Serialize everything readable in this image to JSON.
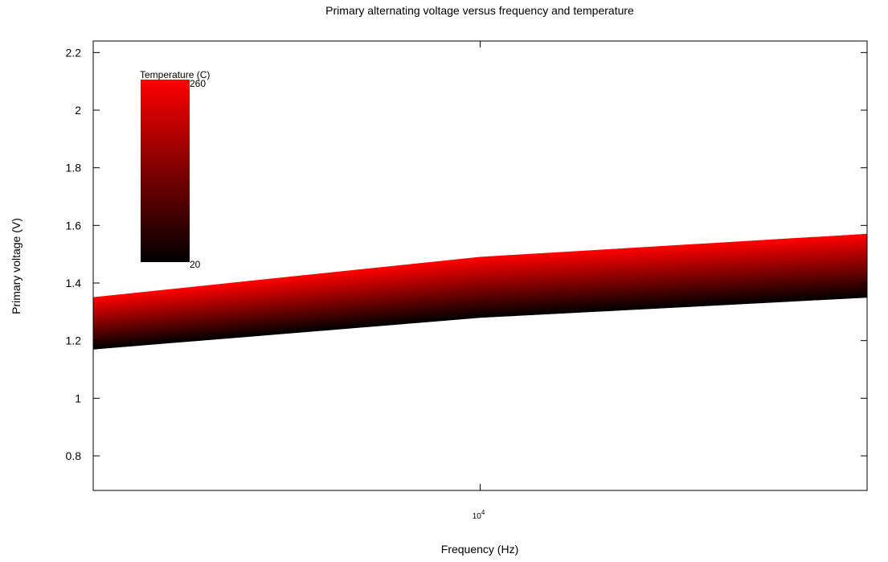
{
  "chart_data": {
    "type": "area",
    "title": "Primary alternating voltage versus frequency and temperature",
    "xlabel": "Frequency (Hz)",
    "ylabel": "Primary voltage (V)",
    "x_scale": "log",
    "xlim": [
      2000,
      50000
    ],
    "ylim": [
      0.68,
      2.24
    ],
    "yticks": [
      0.8,
      1,
      1.2,
      1.4,
      1.6,
      1.8,
      2,
      2.2
    ],
    "ytick_labels": [
      "0.8",
      "1",
      "1.2",
      "1.4",
      "1.6",
      "1.8",
      "2",
      "2.2"
    ],
    "xticks": [
      10000
    ],
    "xtick_labels": [
      {
        "base": "10",
        "exp": "4"
      }
    ],
    "grid": false,
    "colorbar": {
      "title": "Temperature (C)",
      "min_label": "20",
      "max_label": "260",
      "min": 20,
      "max": 260,
      "min_color": "#000000",
      "max_color": "#ff0000",
      "placement": "top-left"
    },
    "series": [
      {
        "temperature": 20,
        "x": [
          2000,
          10000,
          50000
        ],
        "y": [
          1.17,
          1.28,
          1.35
        ]
      },
      {
        "temperature": 260,
        "x": [
          2000,
          10000,
          50000
        ],
        "y": [
          1.35,
          1.49,
          1.57
        ]
      }
    ]
  }
}
